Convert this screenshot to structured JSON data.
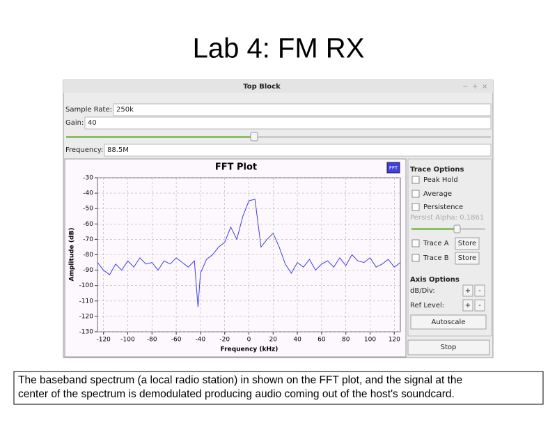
{
  "slide_title": "Lab 4: FM RX",
  "window": {
    "title": "Top Block",
    "buttons": [
      "−",
      "+",
      "×"
    ]
  },
  "fields": [
    {
      "label": "Sample Rate:",
      "value": "250k"
    },
    {
      "label": "Gain:",
      "value": "40"
    },
    {
      "label": "Frequency:",
      "value": "88.5M"
    }
  ],
  "plot_button": "FFT",
  "chart_data": {
    "type": "line",
    "title": "FFT Plot",
    "xlabel": "Frequency (kHz)",
    "ylabel": "Amplitude (dB)",
    "x": [
      -125,
      -120,
      -115,
      -110,
      -105,
      -100,
      -95,
      -90,
      -85,
      -80,
      -75,
      -70,
      -65,
      -60,
      -55,
      -50,
      -45,
      -42,
      -40,
      -35,
      -30,
      -25,
      -20,
      -15,
      -10,
      -5,
      0,
      5,
      10,
      15,
      20,
      25,
      30,
      35,
      40,
      45,
      50,
      55,
      60,
      65,
      70,
      75,
      80,
      85,
      90,
      95,
      100,
      105,
      110,
      115,
      120,
      125
    ],
    "series": [
      {
        "color": "#3f3fe8",
        "values": [
          -85,
          -90,
          -93,
          -86,
          -90,
          -84,
          -88,
          -82,
          -86,
          -85,
          -90,
          -84,
          -86,
          -82,
          -85,
          -88,
          -84,
          -114,
          -92,
          -83,
          -80,
          -75,
          -72,
          -62,
          -70,
          -55,
          -45,
          -44,
          -75,
          -70,
          -66,
          -75,
          -86,
          -92,
          -85,
          -88,
          -83,
          -90,
          -86,
          -84,
          -88,
          -82,
          -87,
          -80,
          -84,
          -85,
          -82,
          -88,
          -86,
          -83,
          -88,
          -85
        ]
      }
    ],
    "xlim": [
      -125,
      125
    ],
    "ylim": [
      -130,
      -30
    ],
    "xticks": [
      -120,
      -100,
      -80,
      -60,
      -40,
      -20,
      0,
      20,
      40,
      60,
      80,
      100,
      120
    ],
    "yticks": [
      -30,
      -40,
      -50,
      -60,
      -70,
      -80,
      -90,
      -100,
      -110,
      -120,
      -130
    ],
    "grid": true
  },
  "trace_options": {
    "title": "Trace Options",
    "checks": [
      "Peak Hold",
      "Average",
      "Persistence"
    ],
    "alpha": "Persist Alpha: 0.1861",
    "trace_a": "Trace A",
    "trace_b": "Trace B",
    "store": "Store"
  },
  "axis_options": {
    "title": "Axis Options",
    "db_div": "dB/Div:",
    "ref_level": "Ref Level:",
    "plus": "+",
    "minus": "-",
    "autoscale": "Autoscale"
  },
  "stop": "Stop",
  "caption": [
    "The baseband spectrum (a local radio station) in shown on the FFT plot, and the signal at the",
    "center of the spectrum is demodulated producing audio coming out of the host's soundcard."
  ]
}
